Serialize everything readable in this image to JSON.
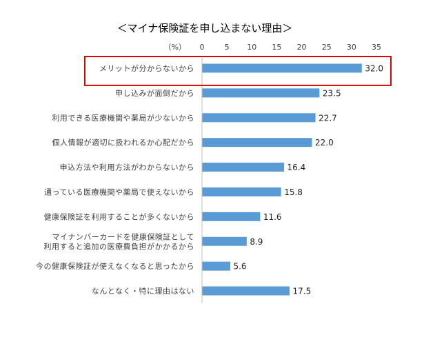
{
  "chart_data": {
    "type": "bar",
    "orientation": "horizontal",
    "title": "＜マイナ保険証を申し込まない理由＞",
    "unit_label": "（%）",
    "xlim": [
      0,
      35
    ],
    "ticks": [
      0,
      5,
      10,
      15,
      20,
      25,
      30,
      35
    ],
    "grid": false,
    "bar_color": "#5B9BD5",
    "highlight_color": "#E00000",
    "highlight_index": 0,
    "categories": [
      [
        "メリットが分からないから"
      ],
      [
        "申し込みが面倒だから"
      ],
      [
        "利用できる医療機関や薬局が少ないから"
      ],
      [
        "個人情報が適切に扱われるか心配だから"
      ],
      [
        "申込方法や利用方法がわからないから"
      ],
      [
        "通っている医療機関や薬局で使えないから"
      ],
      [
        "健康保険証を利用することが多くないから"
      ],
      [
        "マイナンバーカードを健康保険証として",
        "利用すると追加の医療費負担がかかるから"
      ],
      [
        "今の健康保険証が使えなくなると思ったから"
      ],
      [
        "なんとなく・特に理由はない"
      ]
    ],
    "values": [
      32.0,
      23.5,
      22.7,
      22.0,
      16.4,
      15.8,
      11.6,
      8.9,
      5.6,
      17.5
    ],
    "value_labels": [
      "32.0",
      "23.5",
      "22.7",
      "22.0",
      "16.4",
      "15.8",
      "11.6",
      "8.9",
      "5.6",
      "17.5"
    ]
  }
}
